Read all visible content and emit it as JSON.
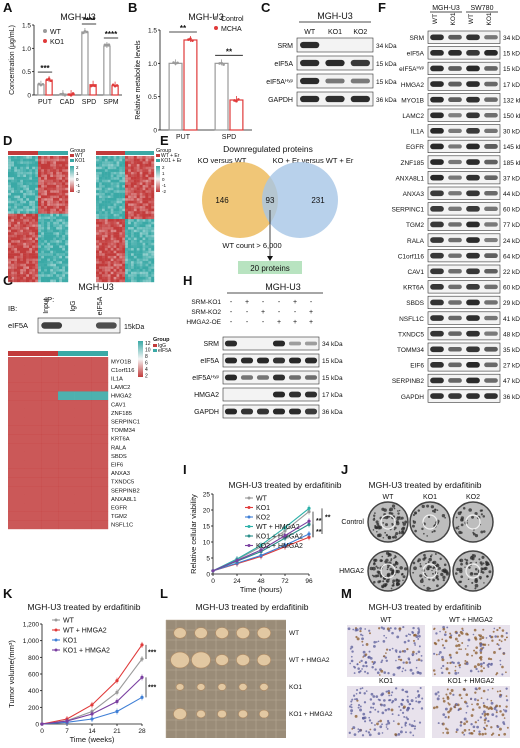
{
  "panel_letters": [
    "A",
    "B",
    "C",
    "D",
    "E",
    "F",
    "G",
    "H",
    "I",
    "J",
    "K",
    "L",
    "M"
  ],
  "colors": {
    "wt": "#9a9a9a",
    "ko1": "#e03a3a",
    "ko2": "#3f7fd6",
    "wt_hmga2": "#2bb0a8",
    "ko1_hmga2": "#2b8f8a",
    "ko2_hmga2": "#7a3fa0",
    "venn_left": "#eec068",
    "venn_right": "#a6c6e6",
    "green_box": "#b8e3c0",
    "heat_high": "#3aa9a6",
    "heat_low": "#c23b3b"
  },
  "A": {
    "title": "MGH-U3",
    "chart_data": {
      "type": "bar",
      "categories": [
        "PUT",
        "CAD",
        "SPD",
        "SPM"
      ],
      "series": [
        {
          "name": "WT",
          "values": [
            0.22,
            0.02,
            1.35,
            1.05
          ]
        },
        {
          "name": "KO1",
          "values": [
            0.32,
            0.02,
            0.22,
            0.2
          ]
        }
      ],
      "ylabel": "Concentration (μg/mL)",
      "ylim": [
        0,
        1.5
      ],
      "yticks": [
        "0",
        "0.5",
        "1.0",
        "1.5"
      ],
      "sig": [
        "***",
        "",
        "****",
        "****"
      ]
    }
  },
  "B": {
    "title": "MGH-U3",
    "chart_data": {
      "type": "bar",
      "categories": [
        "PUT",
        "SPD"
      ],
      "series": [
        {
          "name": "Control",
          "values": [
            1.0,
            1.0
          ]
        },
        {
          "name": "MCHA",
          "values": [
            1.35,
            0.45
          ]
        }
      ],
      "ylabel": "Relative metabolite levels",
      "ylim": [
        0,
        1.5
      ],
      "yticks": [
        "0",
        "0.5",
        "1.0",
        "1.5"
      ],
      "sig": [
        "**",
        "**"
      ]
    }
  },
  "C": {
    "title": "MGH-U3",
    "lanes": [
      "WT",
      "KO1",
      "KO2"
    ],
    "rows": [
      {
        "name": "SRM",
        "kda": "34 kDa"
      },
      {
        "name": "eIF5A",
        "kda": "15 kDa"
      },
      {
        "name": "eIF5A",
        "sup": "Hyp",
        "kda": "15 kDa"
      },
      {
        "name": "GAPDH",
        "kda": "36 kDa"
      }
    ]
  },
  "D": {
    "legend1": {
      "title": "Group",
      "items": [
        "WT",
        "KO1"
      ]
    },
    "legend2": {
      "title": "Group",
      "items": [
        "WT + Er",
        "KO1 + Er"
      ]
    },
    "scale": [
      "2",
      "1",
      "0",
      "-1",
      "-2"
    ]
  },
  "E": {
    "title": "Downregulated proteins",
    "sub_left": "KO versus WT",
    "sub_right": "KO + Er versus WT + Er",
    "left_only": "146",
    "overlap": "93",
    "right_only": "231",
    "filter": "WT count > 6,000",
    "result": "20 proteins"
  },
  "F": {
    "cells": [
      "MGH-U3",
      "SW780"
    ],
    "lanes": [
      "WT",
      "KO1",
      "WT",
      "KO1"
    ],
    "rows": [
      {
        "name": "SRM",
        "kda": "34 kDa"
      },
      {
        "name": "eIF5A",
        "kda": "15 kDa"
      },
      {
        "name": "eIF5A",
        "sup": "Hyp",
        "kda": "15 kDa"
      },
      {
        "name": "HMGA2",
        "kda": "17 kDa"
      },
      {
        "name": "MYO1B",
        "kda": "132 kDa"
      },
      {
        "name": "LAMC2",
        "kda": "150 kDa"
      },
      {
        "name": "IL1A",
        "kda": "30 kDa"
      },
      {
        "name": "EGFR",
        "kda": "145 kDa"
      },
      {
        "name": "ZNF185",
        "kda": "185 kDa"
      },
      {
        "name": "ANXA8L1",
        "kda": "37 kDa"
      },
      {
        "name": "ANXA3",
        "kda": "44 kDa"
      },
      {
        "name": "SERPINC1",
        "kda": "60 kDa"
      },
      {
        "name": "TGM2",
        "kda": "77 kDa"
      },
      {
        "name": "RALA",
        "kda": "24 kDa"
      },
      {
        "name": "C1orf116",
        "kda": "64 kDa"
      },
      {
        "name": "CAV1",
        "kda": "22 kDa"
      },
      {
        "name": "KRT6A",
        "kda": "60 kDa"
      },
      {
        "name": "SBDS",
        "kda": "29 kDa"
      },
      {
        "name": "NSFL1C",
        "kda": "41 kDa"
      },
      {
        "name": "TXNDC5",
        "kda": "48 kDa"
      },
      {
        "name": "TOMM34",
        "kda": "35 kDa"
      },
      {
        "name": "EIF6",
        "kda": "27 kDa"
      },
      {
        "name": "SERPINB2",
        "kda": "47 kDa"
      },
      {
        "name": "GAPDH",
        "kda": "36 kDa"
      }
    ]
  },
  "G": {
    "title": "MGH-U3",
    "ip": "IP:",
    "ib": "IB:",
    "lanes": [
      "Input",
      "IgG",
      "eIF5A"
    ],
    "row": "eIF5A",
    "kda": "15kDa",
    "genes": [
      "MYO1B",
      "C1orf116",
      "IL1A",
      "LAMC2",
      "HMGA2",
      "CAV1",
      "ZNF185",
      "SERPINC1",
      "TOMM34",
      "KRT6A",
      "RALA",
      "SBDS",
      "EIF6",
      "ANXA3",
      "TXNDC5",
      "SERPINB2",
      "ANXA8L1",
      "EGFR",
      "TGM2",
      "NSFL1C"
    ],
    "scale": [
      "12",
      "10",
      "8",
      "6",
      "4",
      "2"
    ],
    "legend": {
      "title": "Group",
      "items": [
        "IgG",
        "eIF5A"
      ]
    }
  },
  "H": {
    "title": "MGH-U3",
    "conditions": [
      {
        "name": "SRM-KO1",
        "marks": [
          "-",
          "+",
          "-",
          "-",
          "+",
          "-"
        ]
      },
      {
        "name": "SRM-KO2",
        "marks": [
          "-",
          "-",
          "+",
          "-",
          "-",
          "+"
        ]
      },
      {
        "name": "HMGA2-OE",
        "marks": [
          "-",
          "-",
          "-",
          "+",
          "+",
          "+"
        ]
      }
    ],
    "rows": [
      {
        "name": "SRM",
        "kda": "34 kDa"
      },
      {
        "name": "eIF5A",
        "kda": "15 kDa"
      },
      {
        "name": "eIF5A",
        "sup": "Hyp",
        "kda": "15 kDa"
      },
      {
        "name": "HMGA2",
        "kda": "17 kDa"
      },
      {
        "name": "GAPDH",
        "kda": "36 kDa"
      }
    ]
  },
  "I": {
    "title": "MGH-U3 treated by erdafitinib",
    "chart_data": {
      "type": "line",
      "x": [
        0,
        24,
        48,
        72,
        96
      ],
      "series": [
        {
          "name": "WT",
          "values": [
            1,
            4.5,
            8.5,
            13.5,
            19.5
          ]
        },
        {
          "name": "KO1",
          "values": [
            1,
            3.2,
            5.5,
            8.5,
            11.5
          ]
        },
        {
          "name": "KO2",
          "values": [
            1,
            3.4,
            5.8,
            9,
            12.5
          ]
        },
        {
          "name": "WT + HMGA2",
          "values": [
            1,
            4.7,
            9,
            14.5,
            20.5
          ]
        },
        {
          "name": "KO1 + HMGA2",
          "values": [
            1,
            4,
            7,
            11.2,
            15.5
          ]
        },
        {
          "name": "KO2 + HMGA2",
          "values": [
            1,
            4.2,
            7.5,
            12,
            16.5
          ]
        }
      ],
      "xlabel": "Time (hours)",
      "ylabel": "Relative cellular viability",
      "xticks": [
        "0",
        "24",
        "48",
        "72",
        "96"
      ],
      "yticks": [
        "0",
        "5",
        "10",
        "15",
        "20",
        "25"
      ],
      "xlim": [
        0,
        96
      ],
      "ylim": [
        0,
        25
      ],
      "sig": [
        "**",
        "**",
        "**"
      ]
    }
  },
  "J": {
    "title": "MGH-U3 treated by erdafitinib",
    "cols": [
      "WT",
      "KO1",
      "KO2"
    ],
    "rows": [
      "Control",
      "HMGA2"
    ]
  },
  "K": {
    "title": "MGH-U3 treated by erdafitinib",
    "chart_data": {
      "type": "line",
      "x": [
        0,
        7,
        14,
        21,
        28
      ],
      "series": [
        {
          "name": "WT",
          "values": [
            0,
            40,
            150,
            380,
            780
          ]
        },
        {
          "name": "WT + HMGA2",
          "values": [
            0,
            60,
            230,
            520,
            950
          ]
        },
        {
          "name": "KO1",
          "values": [
            0,
            20,
            60,
            150,
            320
          ]
        },
        {
          "name": "KO1 + HMGA2",
          "values": [
            0,
            35,
            120,
            270,
            560
          ]
        }
      ],
      "xlabel": "Time (weeks)",
      "ylabel": "Tumor volume(mm³)",
      "xticks": [
        "0",
        "7",
        "14",
        "21",
        "28"
      ],
      "yticks": [
        "0",
        "200",
        "400",
        "600",
        "800",
        "1,000",
        "1,200"
      ],
      "xlim": [
        0,
        28
      ],
      "ylim": [
        0,
        1200
      ],
      "sig": [
        "***",
        "***"
      ]
    }
  },
  "L": {
    "title": "MGH-U3 treated by erdafitinib",
    "rows": [
      "WT",
      "WT + HMGA2",
      "KO1",
      "KO1 + HMGA2"
    ]
  },
  "M": {
    "title": "MGH-U3 treated by erdafitinib",
    "labels": [
      "WT",
      "WT + HMGA2",
      "KO1",
      "KO1 + HMGA2"
    ]
  }
}
